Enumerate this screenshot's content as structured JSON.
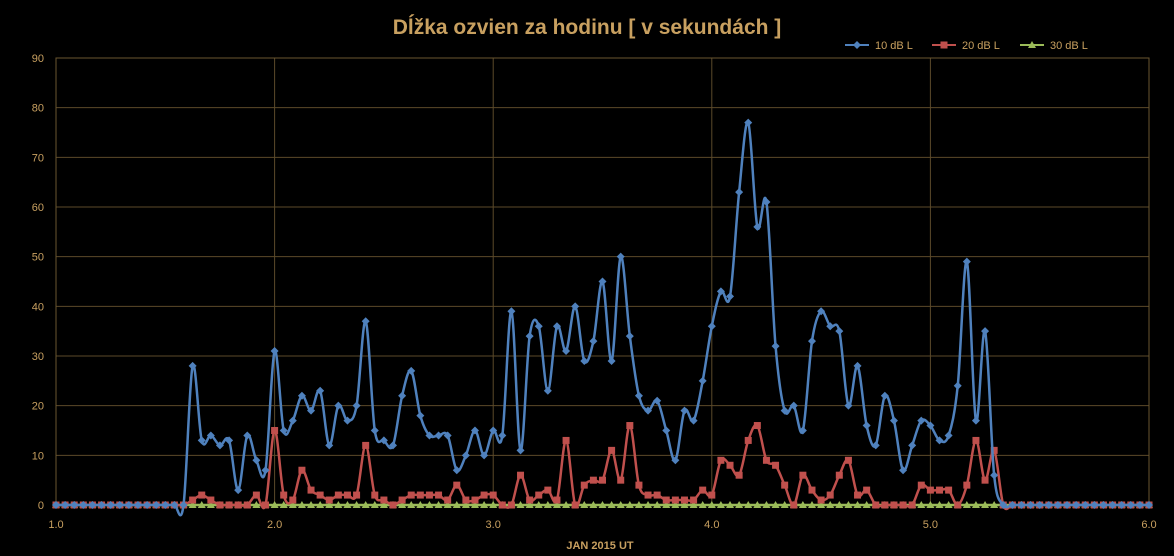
{
  "chart_data": {
    "type": "line",
    "title": "Dĺžka ozvien za hodinu [ v sekundách ]",
    "xlabel": "JAN  2015  UT",
    "ylabel": "",
    "xlim": [
      1.0,
      6.0
    ],
    "ylim": [
      0,
      90
    ],
    "x_ticks": [
      "1.0",
      "2.0",
      "3.0",
      "4.0",
      "5.0",
      "6.0"
    ],
    "y_ticks": [
      "0",
      "10",
      "20",
      "30",
      "40",
      "50",
      "60",
      "70",
      "80",
      "90"
    ],
    "grid": true,
    "legend_position": "top-right",
    "start_x": 1.0,
    "step_x": 0.0416667,
    "series": [
      {
        "name": "10 dB L",
        "color": "#4f81bd",
        "marker": "diamond",
        "values": [
          0,
          0,
          0,
          0,
          0,
          0,
          0,
          0,
          0,
          0,
          0,
          0,
          0,
          0,
          0,
          28,
          13,
          14,
          12,
          13,
          3,
          14,
          9,
          7,
          31,
          15,
          17,
          22,
          19,
          23,
          12,
          20,
          17,
          20,
          37,
          15,
          13,
          12,
          22,
          27,
          18,
          14,
          14,
          14,
          7,
          10,
          15,
          10,
          15,
          14,
          39,
          11,
          34,
          36,
          23,
          36,
          31,
          40,
          29,
          33,
          45,
          29,
          50,
          34,
          22,
          19,
          21,
          15,
          9,
          19,
          17,
          25,
          36,
          43,
          42,
          63,
          77,
          56,
          61,
          32,
          19,
          20,
          15,
          33,
          39,
          36,
          35,
          20,
          28,
          16,
          12,
          22,
          17,
          7,
          12,
          17,
          16,
          13,
          14,
          24,
          49,
          17,
          35,
          6,
          0,
          0,
          0,
          0,
          0,
          0,
          0,
          0,
          0,
          0,
          0,
          0,
          0,
          0,
          0,
          0,
          0
        ]
      },
      {
        "name": "20 dB L",
        "color": "#c0504d",
        "marker": "square",
        "values": [
          0,
          0,
          0,
          0,
          0,
          0,
          0,
          0,
          0,
          0,
          0,
          0,
          0,
          0,
          0,
          1,
          2,
          1,
          0,
          0,
          0,
          0,
          2,
          0,
          15,
          2,
          1,
          7,
          3,
          2,
          1,
          2,
          2,
          2,
          12,
          2,
          1,
          0,
          1,
          2,
          2,
          2,
          2,
          1,
          4,
          1,
          1,
          2,
          2,
          0,
          0,
          6,
          1,
          2,
          3,
          1,
          13,
          0,
          4,
          5,
          5,
          11,
          5,
          16,
          4,
          2,
          2,
          1,
          1,
          1,
          1,
          3,
          2,
          9,
          8,
          6,
          13,
          16,
          9,
          8,
          4,
          0,
          6,
          3,
          1,
          2,
          6,
          9,
          2,
          3,
          0,
          0,
          0,
          0,
          0,
          4,
          3,
          3,
          3,
          0,
          4,
          13,
          5,
          11,
          0,
          0,
          0,
          0,
          0,
          0,
          0,
          0,
          0,
          0,
          0,
          0,
          0,
          0,
          0,
          0,
          0
        ]
      },
      {
        "name": "30 dB L",
        "color": "#9bbb59",
        "marker": "triangle",
        "values": [
          0,
          0,
          0,
          0,
          0,
          0,
          0,
          0,
          0,
          0,
          0,
          0,
          0,
          0,
          0,
          0,
          0,
          0,
          0,
          0,
          0,
          0,
          0,
          0,
          0,
          0,
          0,
          0,
          0,
          0,
          0,
          0,
          0,
          0,
          0,
          0,
          0,
          0,
          0,
          0,
          0,
          0,
          0,
          0,
          0,
          0,
          0,
          0,
          0,
          0,
          0,
          0,
          0,
          0,
          0,
          0,
          0,
          0,
          0,
          0,
          0,
          0,
          0,
          0,
          0,
          0,
          0,
          0,
          0,
          0,
          0,
          0,
          0,
          0,
          0,
          0,
          0,
          0,
          0,
          0,
          0,
          0,
          0,
          0,
          0,
          0,
          0,
          0,
          0,
          0,
          0,
          0,
          0,
          0,
          0,
          0,
          0,
          0,
          0,
          0,
          0,
          0,
          0,
          0,
          0,
          0,
          0,
          0,
          0,
          0,
          0,
          0,
          0,
          0,
          0,
          0,
          0,
          0,
          0,
          0,
          0
        ]
      }
    ]
  }
}
